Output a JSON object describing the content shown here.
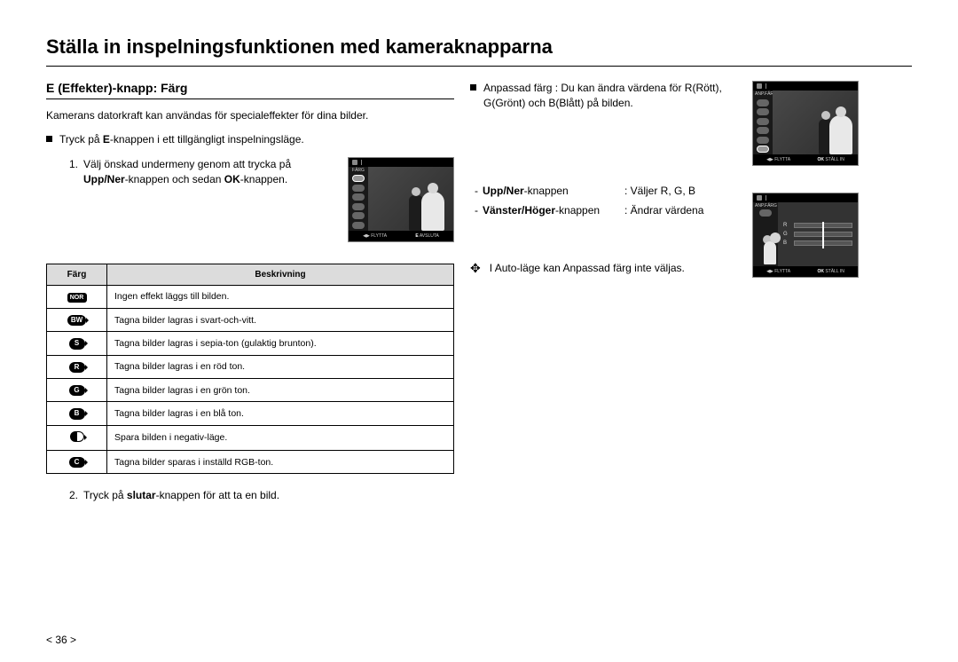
{
  "page": {
    "title": "Ställa in inspelningsfunktionen med kameraknapparna",
    "number": "< 36 >"
  },
  "left": {
    "section_heading": "E (Effekter)-knapp: Färg",
    "intro": "Kamerans datorkraft kan användas för specialeffekter för dina bilder.",
    "bullet1_pre": "Tryck på ",
    "bullet1_bold": "E",
    "bullet1_post": "-knappen i ett tillgängligt inspelningsläge.",
    "step1_num": "1.",
    "step1_l1": "Välj önskad undermeny genom att trycka på",
    "step1_l2_b1": "Upp/Ner",
    "step1_l2_m": "-knappen och sedan ",
    "step1_l2_b2": "OK",
    "step1_l2_post": "-knappen.",
    "step2_num": "2.",
    "step2_pre": "Tryck på ",
    "step2_bold": "slutar",
    "step2_post": "-knappen för att ta en bild.",
    "table": {
      "h1": "Färg",
      "h2": "Beskrivning",
      "rows": [
        {
          "icon": "NOR",
          "cls": "pill nor",
          "desc": "Ingen effekt läggs till bilden."
        },
        {
          "icon": "BW",
          "cls": "pill small tail",
          "desc": "Tagna bilder lagras i svart-och-vitt."
        },
        {
          "icon": "S",
          "cls": "pill small tail",
          "desc": "Tagna bilder lagras i sepia-ton (gulaktig brunton)."
        },
        {
          "icon": "R",
          "cls": "pill small tail",
          "desc": "Tagna bilder lagras i en röd ton."
        },
        {
          "icon": "G",
          "cls": "pill small tail",
          "desc": "Tagna bilder lagras i en grön ton."
        },
        {
          "icon": "B",
          "cls": "pill small tail",
          "desc": "Tagna bilder lagras i en blå ton."
        },
        {
          "icon": "",
          "cls": "half-pill",
          "desc": "Spara bilden i negativ-läge."
        },
        {
          "icon": "C",
          "cls": "pill small tail",
          "desc": "Tagna bilder sparas i inställd RGB-ton."
        }
      ]
    },
    "cam1": {
      "side_label": "FÄRG",
      "bot_move": "FLYTTA",
      "bot_e": "E",
      "bot_exit": "AVSLUTA"
    }
  },
  "mid": {
    "bullet_text": "Anpassad färg : Du kan ändra värdena för R(Rött), G(Grönt) och B(Blått) på bilden.",
    "row1": {
      "k_b": "Upp/Ner",
      "k_post": "-knappen",
      "v": ": Väljer R, G, B"
    },
    "row2": {
      "k_b": "Vänster/Höger",
      "k_post": "-knappen",
      "v": ": Ändrar värdena"
    },
    "note": "I Auto-läge kan Anpassad färg inte väljas."
  },
  "right": {
    "cam_top": {
      "side_label": "ANP.FÄRG",
      "bot_move": "FLYTTA",
      "bot_ok": "OK",
      "bot_set": "STÄLL IN"
    },
    "cam_rgb": {
      "side_label": "ANP.FÄRG",
      "r": "R",
      "g": "G",
      "b": "B",
      "bot_move": "FLYTTA",
      "bot_ok": "OK",
      "bot_set": "STÄLL IN"
    }
  }
}
